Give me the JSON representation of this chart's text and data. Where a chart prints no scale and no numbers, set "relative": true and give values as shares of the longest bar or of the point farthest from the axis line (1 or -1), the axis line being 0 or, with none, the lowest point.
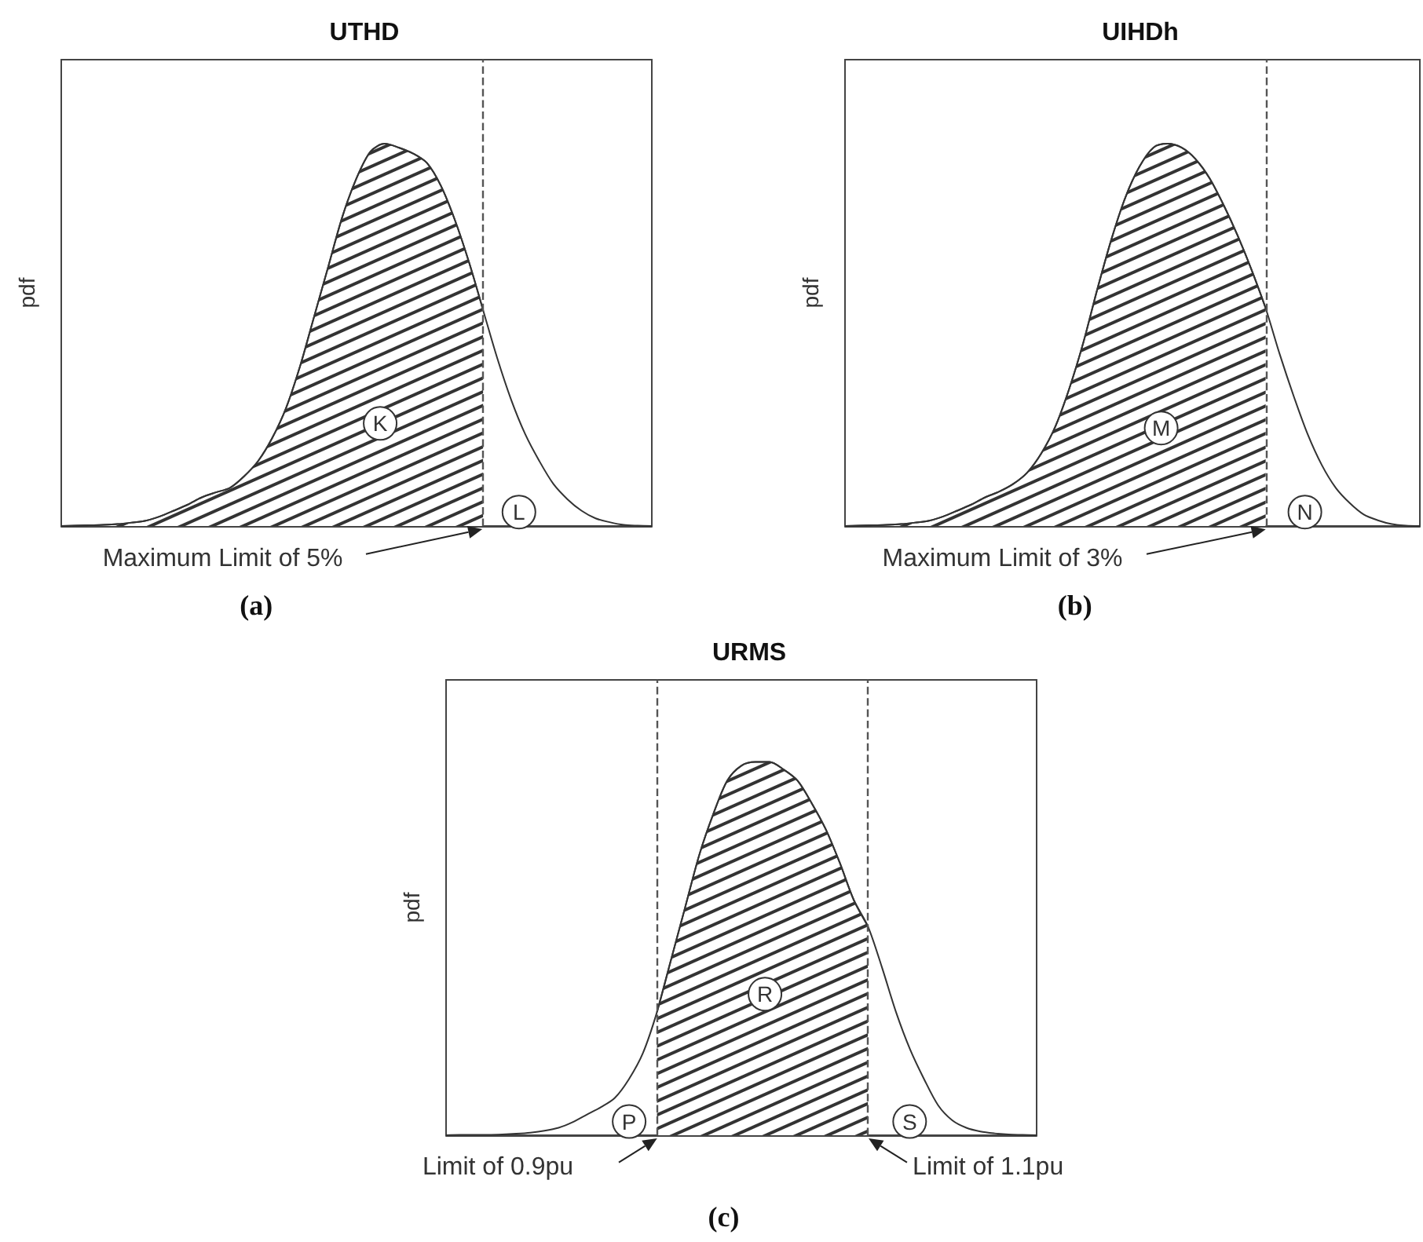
{
  "chart_data": [
    {
      "type": "area",
      "title": "UTHD",
      "ylabel": "pdf",
      "relative": true,
      "categories": [
        null,
        null,
        null,
        null,
        null,
        null,
        null,
        null,
        null,
        null,
        null,
        null,
        null,
        null,
        null,
        null,
        null,
        null,
        null,
        null,
        null,
        null,
        null,
        null,
        null,
        null,
        null,
        null,
        null,
        null,
        null,
        null,
        null,
        null,
        null,
        null,
        null,
        null,
        null,
        null,
        null,
        null,
        null
      ],
      "series": [
        {
          "type": "line",
          "color": "#333333",
          "values": [
            0,
            0.001,
            0.002,
            0.003,
            0.005,
            0.009,
            0.014,
            0.025,
            0.04,
            0.056,
            0.075,
            0.088,
            0.1,
            0.13,
            0.17,
            0.23,
            0.31,
            0.42,
            0.55,
            0.68,
            0.81,
            0.91,
            0.98,
            1.0,
            0.99,
            0.975,
            0.95,
            0.89,
            0.8,
            0.69,
            0.565,
            0.44,
            0.33,
            0.24,
            0.17,
            0.11,
            0.07,
            0.04,
            0.02,
            0.01,
            0.003,
            0.001,
            0
          ]
        },
        {
          "type": "area",
          "color": "#333333",
          "values": [
            0,
            0.001,
            0.002,
            0.003,
            0.005,
            0.009,
            0.014,
            0.025,
            0.04,
            0.056,
            0.075,
            0.088,
            0.1,
            0.13,
            0.17,
            0.23,
            0.31,
            0.42,
            0.55,
            0.68,
            0.81,
            0.91,
            0.98,
            1.0,
            0.99,
            0.975,
            0.95,
            0.89,
            0.8,
            0.69,
            0.565,
            null,
            null,
            null,
            null,
            null,
            null,
            null,
            null,
            null,
            null,
            null,
            null
          ]
        }
      ],
      "annotations": [
        "K",
        "L",
        "Maximum Limit of 5%",
        "(a)"
      ]
    },
    {
      "type": "area",
      "title": "UIHDh",
      "ylabel": "pdf",
      "relative": true,
      "categories": [
        null,
        null,
        null,
        null,
        null,
        null,
        null,
        null,
        null,
        null,
        null,
        null,
        null,
        null,
        null,
        null,
        null,
        null,
        null,
        null,
        null,
        null,
        null,
        null,
        null,
        null,
        null,
        null,
        null,
        null,
        null,
        null,
        null,
        null,
        null,
        null,
        null,
        null,
        null,
        null,
        null,
        null
      ],
      "series": [
        {
          "type": "line",
          "color": "#333333",
          "values": [
            0,
            0.001,
            0.002,
            0.003,
            0.005,
            0.009,
            0.014,
            0.025,
            0.04,
            0.056,
            0.075,
            0.09,
            0.11,
            0.14,
            0.19,
            0.26,
            0.36,
            0.48,
            0.62,
            0.75,
            0.86,
            0.94,
            0.99,
            1.0,
            0.99,
            0.96,
            0.91,
            0.84,
            0.76,
            0.67,
            0.57,
            0.45,
            0.34,
            0.24,
            0.16,
            0.1,
            0.06,
            0.03,
            0.015,
            0.005,
            0.001,
            0
          ]
        },
        {
          "type": "area",
          "color": "#333333",
          "values": [
            0,
            0.001,
            0.002,
            0.003,
            0.005,
            0.009,
            0.014,
            0.025,
            0.04,
            0.056,
            0.075,
            0.09,
            0.11,
            0.14,
            0.19,
            0.26,
            0.36,
            0.48,
            0.62,
            0.75,
            0.86,
            0.94,
            0.99,
            1.0,
            0.99,
            0.96,
            0.91,
            0.84,
            0.76,
            0.67,
            0.57,
            null,
            null,
            null,
            null,
            null,
            null,
            null,
            null,
            null,
            null,
            null
          ]
        }
      ],
      "annotations": [
        "M",
        "N",
        "Maximum Limit of 3%",
        "(b)"
      ]
    },
    {
      "type": "area",
      "title": "URMS",
      "ylabel": "pdf",
      "relative": true,
      "categories": [
        null,
        null,
        null,
        null,
        null,
        null,
        null,
        null,
        null,
        null,
        null,
        null,
        null,
        null,
        null,
        null,
        null,
        null,
        null,
        null,
        null,
        null,
        null,
        null,
        null,
        null,
        null,
        null,
        null,
        null,
        null,
        null,
        null,
        null,
        null,
        null,
        null,
        null,
        null,
        null,
        null,
        null,
        null
      ],
      "series": [
        {
          "type": "line",
          "color": "#333333",
          "values": [
            0,
            0.001,
            0.001,
            0.001,
            0.002,
            0.004,
            0.007,
            0.012,
            0.02,
            0.035,
            0.055,
            0.075,
            0.1,
            0.15,
            0.22,
            0.33,
            0.47,
            0.61,
            0.75,
            0.86,
            0.95,
            0.99,
            1.0,
            1.0,
            0.98,
            0.95,
            0.89,
            0.82,
            0.73,
            0.63,
            0.56,
            0.45,
            0.33,
            0.23,
            0.15,
            0.08,
            0.04,
            0.02,
            0.01,
            0.005,
            0.002,
            0.001,
            0
          ]
        },
        {
          "type": "area",
          "color": "#333333",
          "values": [
            null,
            null,
            null,
            null,
            null,
            null,
            null,
            null,
            null,
            null,
            null,
            null,
            null,
            null,
            null,
            0.33,
            0.47,
            0.61,
            0.75,
            0.86,
            0.95,
            0.99,
            1.0,
            1.0,
            0.98,
            0.95,
            0.89,
            0.82,
            0.73,
            0.63,
            0.56,
            null,
            null,
            null,
            null,
            null,
            null,
            null,
            null,
            null,
            null,
            null,
            null
          ]
        }
      ],
      "annotations": [
        "P",
        "R",
        "S",
        "Limit of 0.9pu",
        "Limit of 1.1pu",
        "(c)"
      ]
    }
  ]
}
